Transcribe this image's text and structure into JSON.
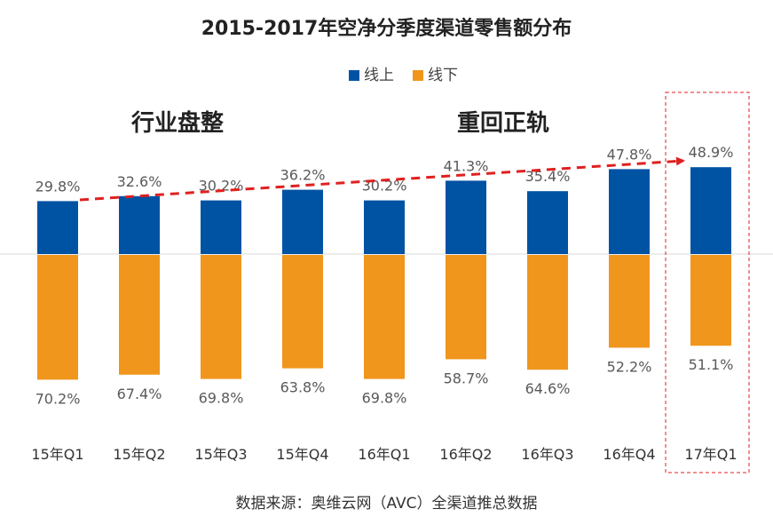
{
  "chart_data": {
    "type": "bar",
    "title": "2015-2017年空净分季度渠道零售额分布",
    "categories": [
      "15年Q1",
      "15年Q2",
      "15年Q3",
      "15年Q4",
      "16年Q1",
      "16年Q2",
      "16年Q3",
      "16年Q4",
      "17年Q1"
    ],
    "series": [
      {
        "name": "线上",
        "color": "#0052a3",
        "values": [
          29.8,
          32.6,
          30.2,
          36.2,
          30.2,
          41.3,
          35.4,
          47.8,
          48.9
        ],
        "labels": [
          "29.8%",
          "32.6%",
          "30.2%",
          "36.2%",
          "30.2%",
          "41.3%",
          "35.4%",
          "47.8%",
          "48.9%"
        ]
      },
      {
        "name": "线下",
        "color": "#f0961c",
        "values": [
          70.2,
          67.4,
          69.8,
          63.8,
          69.8,
          58.7,
          64.6,
          52.2,
          51.1
        ],
        "labels": [
          "70.2%",
          "67.4%",
          "69.8%",
          "63.8%",
          "69.8%",
          "58.7%",
          "64.6%",
          "52.2%",
          "51.1%"
        ]
      }
    ],
    "annotations": [
      "行业盘整",
      "重回正轨"
    ],
    "legend": "top-center",
    "grid": false,
    "trend_arrow_color": "#e02020",
    "highlight_color": "#e02020"
  },
  "source": "数据来源：奥维云网（AVC）全渠道推总数据"
}
